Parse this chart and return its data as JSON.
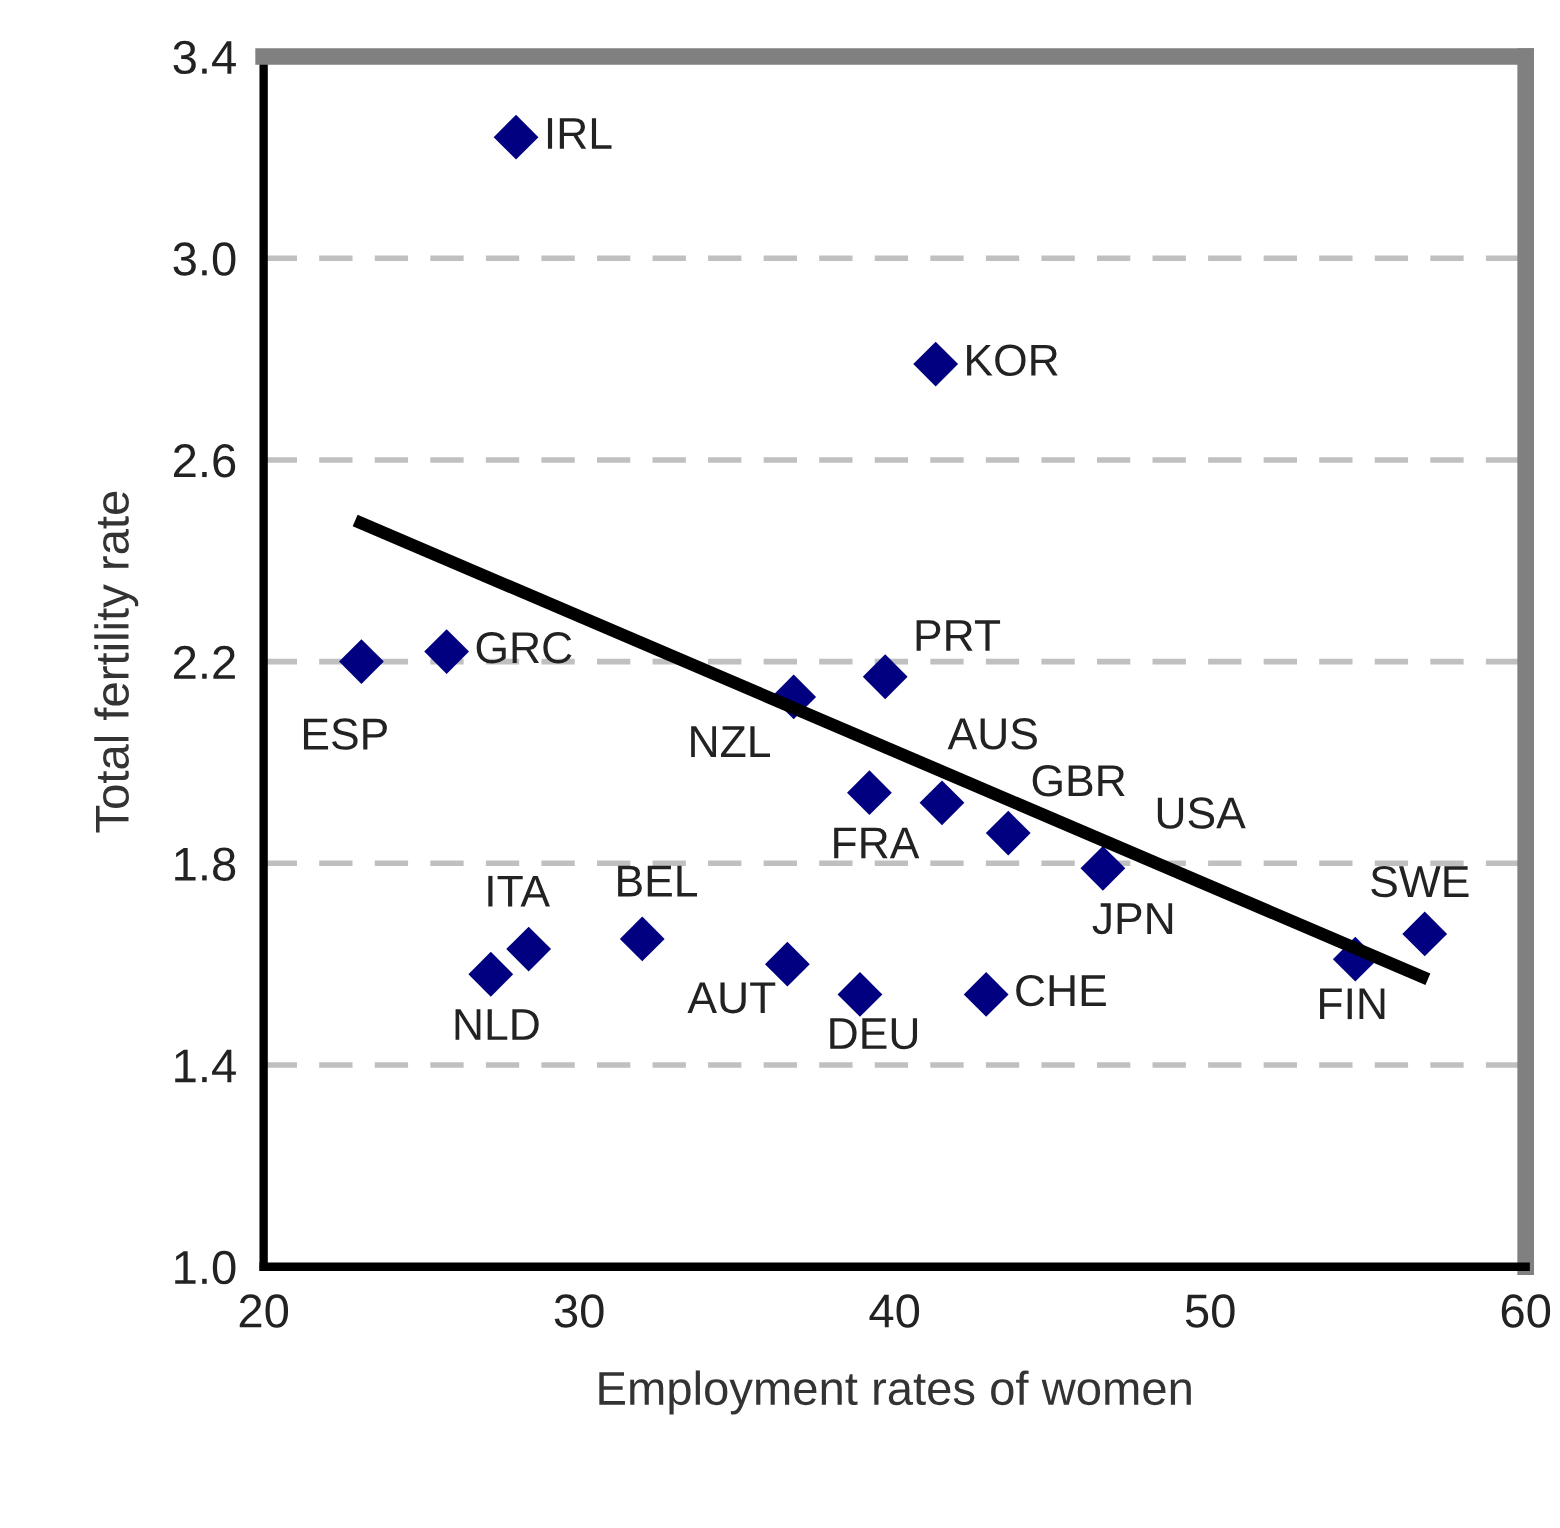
{
  "chart_data": {
    "type": "scatter",
    "xlabel": "Employment rates of women",
    "ylabel": "Total fertility rate",
    "xlim": [
      20,
      60
    ],
    "xticks": [
      20,
      30,
      40,
      50,
      60
    ],
    "ylim": [
      1.0,
      3.4
    ],
    "yticks": [
      {
        "value": 1.0,
        "label": "1.0"
      },
      {
        "value": 1.4,
        "label": "1.4"
      },
      {
        "value": 1.8,
        "label": "1.8"
      },
      {
        "value": 2.2,
        "label": "2.2"
      },
      {
        "value": 2.6,
        "label": "2.6"
      },
      {
        "value": 3.0,
        "label": "3.0"
      },
      {
        "value": 3.4,
        "label": "3.4"
      }
    ],
    "grid": "y",
    "legend": false,
    "series": [
      {
        "marker": "diamond",
        "color": "#000080",
        "x": [
          28.0,
          41.3,
          23.1,
          25.8,
          36.8,
          39.7,
          39.2,
          41.5,
          43.6,
          46.6,
          54.6,
          56.8,
          42.9,
          38.9,
          36.6,
          32.0,
          27.2,
          28.4
        ],
        "values": [
          3.24,
          2.79,
          2.2,
          2.22,
          2.13,
          2.17,
          1.94,
          1.92,
          1.86,
          1.79,
          1.61,
          1.66,
          1.54,
          1.54,
          1.6,
          1.65,
          1.58,
          1.63
        ]
      },
      {
        "type": "line",
        "color": "#000000",
        "x": [
          22.9,
          56.9
        ],
        "values": [
          2.48,
          1.57
        ]
      }
    ],
    "annotations": [
      {
        "text": "IRL",
        "x": 28.0,
        "y": 3.24
      },
      {
        "text": "KOR",
        "x": 41.3,
        "y": 2.79
      },
      {
        "text": "ESP",
        "x": 23.1,
        "y": 2.2
      },
      {
        "text": "GRC",
        "x": 25.8,
        "y": 2.22
      },
      {
        "text": "NZL",
        "x": 36.8,
        "y": 2.13
      },
      {
        "text": "PRT",
        "x": 39.7,
        "y": 2.17
      },
      {
        "text": "FRA",
        "x": 39.2,
        "y": 1.94
      },
      {
        "text": "AUS",
        "x": 41.5,
        "y": 1.92
      },
      {
        "text": "GBR",
        "x": 43.6,
        "y": 1.86
      },
      {
        "text": "JPN",
        "x": 46.6,
        "y": 1.79
      },
      {
        "text": "FIN",
        "x": 54.6,
        "y": 1.61
      },
      {
        "text": "SWE",
        "x": 56.8,
        "y": 1.66
      },
      {
        "text": "CHE",
        "x": 42.9,
        "y": 1.54
      },
      {
        "text": "DEU",
        "x": 38.9,
        "y": 1.54
      },
      {
        "text": "AUT",
        "x": 36.6,
        "y": 1.6
      },
      {
        "text": "BEL",
        "x": 32.0,
        "y": 1.65
      },
      {
        "text": "NLD",
        "x": 27.2,
        "y": 1.58
      },
      {
        "text": "ITA",
        "x": 28.4,
        "y": 1.63
      },
      {
        "text": "USA",
        "x": 47.0,
        "y": 1.84
      }
    ]
  }
}
